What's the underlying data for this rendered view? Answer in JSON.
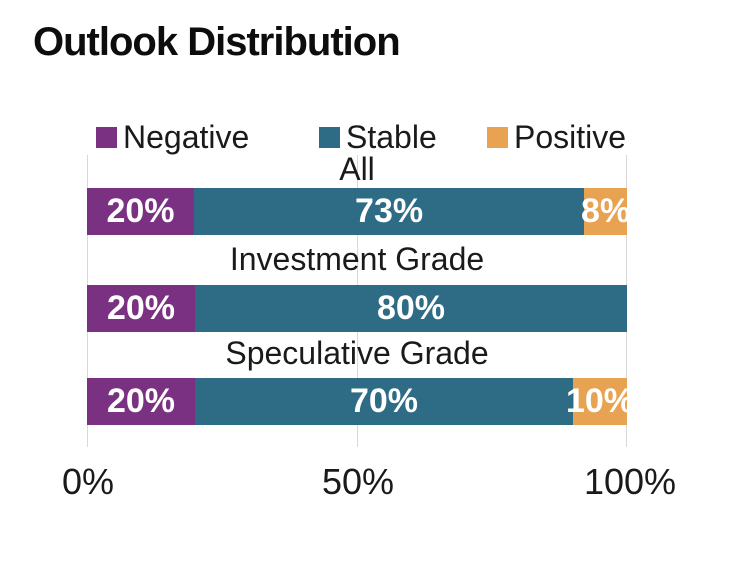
{
  "title": "Outlook Distribution",
  "colors": {
    "negative": "#7a3182",
    "stable": "#2e6b85",
    "positive": "#e8a352",
    "gridline": "#d9d9d9",
    "bar_label_text": "#ffffff",
    "text": "#1a1a1a"
  },
  "chart_data": {
    "type": "bar",
    "orientation": "horizontal",
    "stacked": true,
    "title": "Outlook Distribution",
    "categories": [
      "All",
      "Investment Grade",
      "Speculative Grade"
    ],
    "series": [
      {
        "name": "Negative",
        "color": "#7a3182",
        "values": [
          20,
          20,
          20
        ],
        "labels": [
          "20%",
          "20%",
          "20%"
        ]
      },
      {
        "name": "Stable",
        "color": "#2e6b85",
        "values": [
          73,
          80,
          70
        ],
        "labels": [
          "73%",
          "80%",
          "70%"
        ]
      },
      {
        "name": "Positive",
        "color": "#e8a352",
        "values": [
          8,
          0,
          10
        ],
        "labels": [
          "8%",
          "",
          "10%"
        ]
      }
    ],
    "x_ticks": [
      "0%",
      "50%",
      "100%"
    ],
    "xlim": [
      0,
      100
    ],
    "grid": true,
    "legend_position": "top"
  }
}
